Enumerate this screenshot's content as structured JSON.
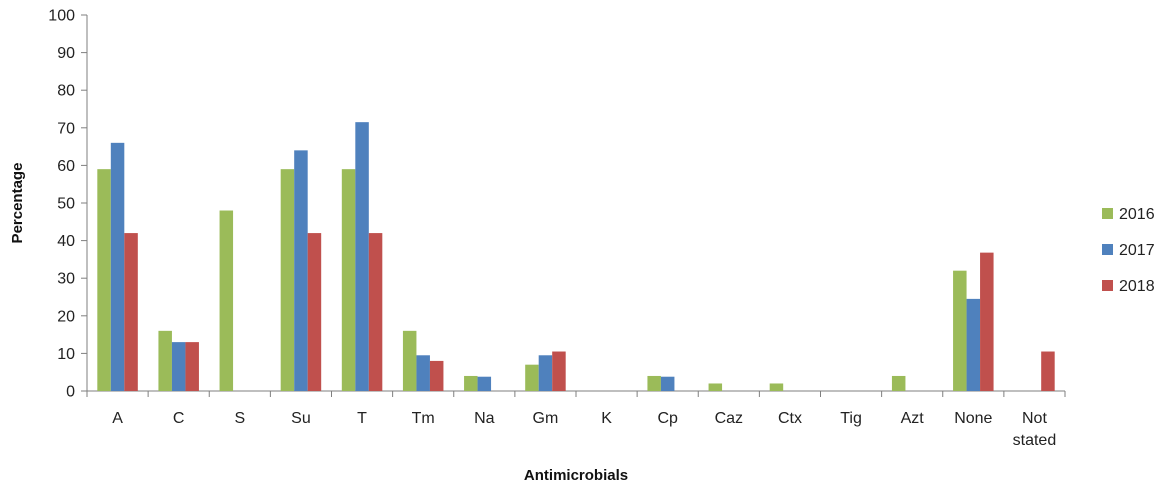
{
  "chart_data": {
    "type": "bar",
    "title": "",
    "xlabel": "Antimicrobials",
    "ylabel": "Percentage",
    "ylim": [
      0,
      100
    ],
    "yticks": [
      0,
      10,
      20,
      30,
      40,
      50,
      60,
      70,
      80,
      90,
      100
    ],
    "grid": false,
    "legend_position": "right",
    "categories": [
      "A",
      "C",
      "S",
      "Su",
      "T",
      "Tm",
      "Na",
      "Gm",
      "K",
      "Cp",
      "Caz",
      "Ctx",
      "Tig",
      "Azt",
      "None",
      "Not stated"
    ],
    "series": [
      {
        "name": "2016",
        "color": "#9BBB59",
        "values": [
          59,
          16,
          48,
          59,
          59,
          16,
          4,
          7,
          0,
          4,
          2,
          2,
          0,
          4,
          32,
          0
        ]
      },
      {
        "name": "2017",
        "color": "#4F81BD",
        "values": [
          66,
          13,
          0,
          64,
          71.5,
          9.5,
          3.8,
          9.5,
          0,
          3.8,
          0,
          0,
          0,
          0,
          24.5,
          0
        ]
      },
      {
        "name": "2018",
        "color": "#C0504D",
        "values": [
          42,
          13,
          0,
          42,
          42,
          8,
          0,
          10.5,
          0,
          0,
          0,
          0,
          0,
          0,
          36.8,
          10.5
        ]
      }
    ]
  }
}
